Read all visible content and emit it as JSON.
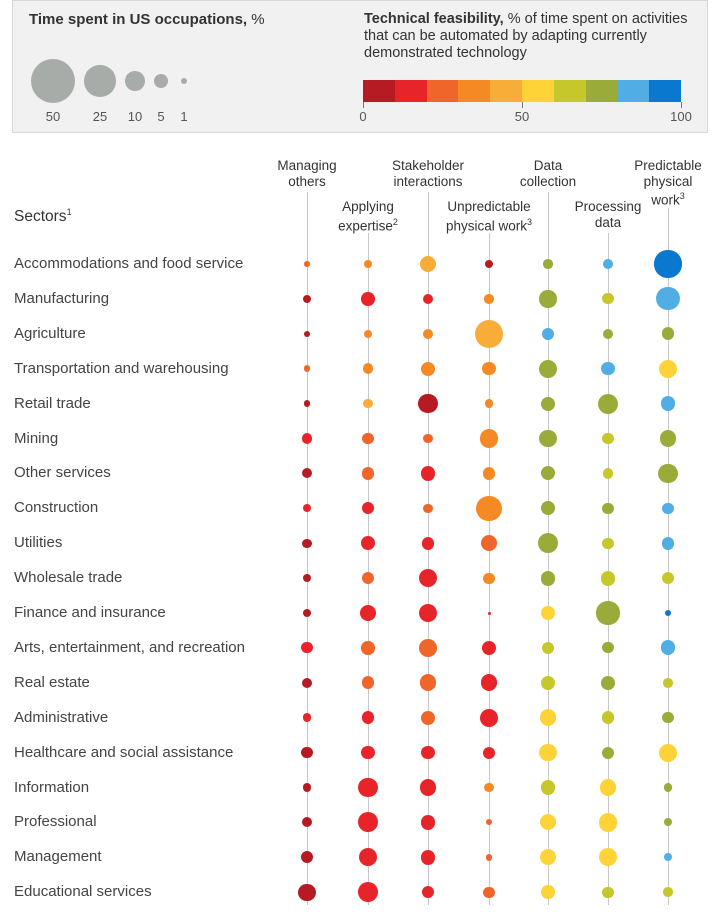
{
  "legend": {
    "size_title_bold": "Time spent in US occupations,",
    "size_title_unit": "%",
    "size_items": [
      {
        "label": "50",
        "value": 50
      },
      {
        "label": "25",
        "value": 25
      },
      {
        "label": "10",
        "value": 10
      },
      {
        "label": "5",
        "value": 5
      },
      {
        "label": "1",
        "value": 1
      }
    ],
    "feasibility_title_bold": "Technical feasibility,",
    "feasibility_title_rest": "% of time spent on activities that can be automated by adapting currently demonstrated technology",
    "color_scale": [
      "#b61b23",
      "#e8242b",
      "#f06529",
      "#f58a25",
      "#f7ad38",
      "#fdd338",
      "#c6c72b",
      "#9aab3a",
      "#50aee5",
      "#0a78cf"
    ],
    "scale_ticks": [
      "0",
      "50",
      "100"
    ],
    "size_color": "#a8aca9"
  },
  "columns": [
    {
      "label": "Managing others",
      "lines": [
        "Managing",
        "others"
      ],
      "sup": ""
    },
    {
      "label": "Applying expertise",
      "lines": [
        "Applying",
        "expertise"
      ],
      "sup": "2"
    },
    {
      "label": "Stakeholder interactions",
      "lines": [
        "Stakeholder",
        "interactions"
      ],
      "sup": ""
    },
    {
      "label": "Unpredictable physical work",
      "lines": [
        "Unpredictable",
        "physical work"
      ],
      "sup": "3"
    },
    {
      "label": "Data collection",
      "lines": [
        "Data",
        "collection"
      ],
      "sup": ""
    },
    {
      "label": "Processing data",
      "lines": [
        "Processing",
        "data"
      ],
      "sup": ""
    },
    {
      "label": "Predictable physical work",
      "lines": [
        "Predictable",
        "physical",
        "work"
      ],
      "sup": "3"
    }
  ],
  "sectors_title": "Sectors",
  "sectors_title_sup": "1",
  "chart_data": {
    "type": "bubble-matrix",
    "size_encoding": "Time spent in US occupations, %",
    "color_encoding": "Technical feasibility, % (color bin index 0-9; 0 = 0-10%, 9 = 90-100%)",
    "columns": [
      "Managing others",
      "Applying expertise",
      "Stakeholder interactions",
      "Unpredictable physical work",
      "Data collection",
      "Processing data",
      "Predictable physical work"
    ],
    "rows": [
      {
        "sector": "Accommodations and food service",
        "cells": [
          {
            "size": 0.8,
            "color": 2
          },
          {
            "size": 1.7,
            "color": 3
          },
          {
            "size": 7,
            "color": 4
          },
          {
            "size": 1.7,
            "color": 0
          },
          {
            "size": 2.3,
            "color": 7
          },
          {
            "size": 2.8,
            "color": 8
          },
          {
            "size": 18.5,
            "color": 9
          }
        ]
      },
      {
        "sector": "Manufacturing",
        "cells": [
          {
            "size": 1.7,
            "color": 0
          },
          {
            "size": 4.6,
            "color": 1
          },
          {
            "size": 2.8,
            "color": 1
          },
          {
            "size": 2.3,
            "color": 3
          },
          {
            "size": 7.5,
            "color": 7
          },
          {
            "size": 3.1,
            "color": 6
          },
          {
            "size": 13.5,
            "color": 8
          }
        ]
      },
      {
        "sector": "Agriculture",
        "cells": [
          {
            "size": 1,
            "color": 0
          },
          {
            "size": 1.7,
            "color": 3
          },
          {
            "size": 2.5,
            "color": 3
          },
          {
            "size": 20,
            "color": 4
          },
          {
            "size": 3.6,
            "color": 8
          },
          {
            "size": 2.8,
            "color": 7
          },
          {
            "size": 4.1,
            "color": 7
          }
        ]
      },
      {
        "sector": "Transportation and warehousing",
        "cells": [
          {
            "size": 1.1,
            "color": 2
          },
          {
            "size": 2.8,
            "color": 3
          },
          {
            "size": 5,
            "color": 3
          },
          {
            "size": 4.6,
            "color": 3
          },
          {
            "size": 8,
            "color": 7
          },
          {
            "size": 4.6,
            "color": 8
          },
          {
            "size": 8,
            "color": 5
          }
        ]
      },
      {
        "sector": "Retail trade",
        "cells": [
          {
            "size": 1,
            "color": 0
          },
          {
            "size": 2.2,
            "color": 4
          },
          {
            "size": 9.3,
            "color": 0
          },
          {
            "size": 1.7,
            "color": 3
          },
          {
            "size": 5,
            "color": 7
          },
          {
            "size": 10,
            "color": 7
          },
          {
            "size": 5.6,
            "color": 8
          }
        ]
      },
      {
        "sector": "Mining",
        "cells": [
          {
            "size": 2.8,
            "color": 1
          },
          {
            "size": 3.6,
            "color": 2
          },
          {
            "size": 2.5,
            "color": 2
          },
          {
            "size": 8.5,
            "color": 3
          },
          {
            "size": 7.5,
            "color": 7
          },
          {
            "size": 3.1,
            "color": 6
          },
          {
            "size": 6.5,
            "color": 7
          }
        ]
      },
      {
        "sector": "Other services",
        "cells": [
          {
            "size": 2.6,
            "color": 0
          },
          {
            "size": 4.1,
            "color": 2
          },
          {
            "size": 5.6,
            "color": 1
          },
          {
            "size": 4.1,
            "color": 3
          },
          {
            "size": 5,
            "color": 7
          },
          {
            "size": 2.8,
            "color": 6
          },
          {
            "size": 9.3,
            "color": 7
          }
        ]
      },
      {
        "sector": "Construction",
        "cells": [
          {
            "size": 1.7,
            "color": 1
          },
          {
            "size": 3.6,
            "color": 1
          },
          {
            "size": 2.3,
            "color": 2
          },
          {
            "size": 16.5,
            "color": 3
          },
          {
            "size": 5,
            "color": 7
          },
          {
            "size": 3.1,
            "color": 7
          },
          {
            "size": 3.1,
            "color": 8
          }
        ]
      },
      {
        "sector": "Utilities",
        "cells": [
          {
            "size": 2.2,
            "color": 0
          },
          {
            "size": 5,
            "color": 1
          },
          {
            "size": 4.1,
            "color": 1
          },
          {
            "size": 6.5,
            "color": 2
          },
          {
            "size": 10,
            "color": 7
          },
          {
            "size": 3.1,
            "color": 6
          },
          {
            "size": 4.1,
            "color": 8
          }
        ]
      },
      {
        "sector": "Wholesale trade",
        "cells": [
          {
            "size": 1.7,
            "color": 0
          },
          {
            "size": 4.1,
            "color": 2
          },
          {
            "size": 8.5,
            "color": 1
          },
          {
            "size": 3.1,
            "color": 3
          },
          {
            "size": 5.6,
            "color": 7
          },
          {
            "size": 5.6,
            "color": 6
          },
          {
            "size": 4.1,
            "color": 6
          }
        ]
      },
      {
        "sector": "Finance and insurance",
        "cells": [
          {
            "size": 1.7,
            "color": 0
          },
          {
            "size": 7,
            "color": 1
          },
          {
            "size": 8.5,
            "color": 1
          },
          {
            "size": 0.1,
            "color": 1
          },
          {
            "size": 5,
            "color": 5
          },
          {
            "size": 13.5,
            "color": 7
          },
          {
            "size": 0.9,
            "color": 9
          }
        ]
      },
      {
        "sector": "Arts, entertainment, and recreation",
        "cells": [
          {
            "size": 3.1,
            "color": 1
          },
          {
            "size": 4.6,
            "color": 2
          },
          {
            "size": 8,
            "color": 2
          },
          {
            "size": 5,
            "color": 1
          },
          {
            "size": 4.1,
            "color": 6
          },
          {
            "size": 3.1,
            "color": 7
          },
          {
            "size": 5.6,
            "color": 8
          }
        ]
      },
      {
        "sector": "Real estate",
        "cells": [
          {
            "size": 2.6,
            "color": 0
          },
          {
            "size": 4.1,
            "color": 2
          },
          {
            "size": 7,
            "color": 2
          },
          {
            "size": 7,
            "color": 1
          },
          {
            "size": 5,
            "color": 6
          },
          {
            "size": 5,
            "color": 7
          },
          {
            "size": 2.3,
            "color": 6
          }
        ]
      },
      {
        "sector": "Administrative",
        "cells": [
          {
            "size": 2,
            "color": 1
          },
          {
            "size": 4.1,
            "color": 1
          },
          {
            "size": 5,
            "color": 2
          },
          {
            "size": 8.5,
            "color": 1
          },
          {
            "size": 7,
            "color": 5
          },
          {
            "size": 4.1,
            "color": 6
          },
          {
            "size": 3.1,
            "color": 7
          }
        ]
      },
      {
        "sector": "Healthcare and social assistance",
        "cells": [
          {
            "size": 3.1,
            "color": 0
          },
          {
            "size": 4.6,
            "color": 1
          },
          {
            "size": 4.6,
            "color": 1
          },
          {
            "size": 3.6,
            "color": 1
          },
          {
            "size": 7.5,
            "color": 5
          },
          {
            "size": 3.6,
            "color": 7
          },
          {
            "size": 8,
            "color": 5
          }
        ]
      },
      {
        "sector": "Information",
        "cells": [
          {
            "size": 1.9,
            "color": 0
          },
          {
            "size": 9.3,
            "color": 1
          },
          {
            "size": 7,
            "color": 1
          },
          {
            "size": 2.5,
            "color": 3
          },
          {
            "size": 5,
            "color": 6
          },
          {
            "size": 7,
            "color": 5
          },
          {
            "size": 2,
            "color": 7
          }
        ]
      },
      {
        "sector": "Professional",
        "cells": [
          {
            "size": 2.6,
            "color": 0
          },
          {
            "size": 10,
            "color": 1
          },
          {
            "size": 5.6,
            "color": 1
          },
          {
            "size": 0.9,
            "color": 2
          },
          {
            "size": 6.5,
            "color": 5
          },
          {
            "size": 8.5,
            "color": 5
          },
          {
            "size": 1.7,
            "color": 7
          }
        ]
      },
      {
        "sector": "Management",
        "cells": [
          {
            "size": 3.6,
            "color": 0
          },
          {
            "size": 8.5,
            "color": 1
          },
          {
            "size": 5.6,
            "color": 1
          },
          {
            "size": 1.1,
            "color": 2
          },
          {
            "size": 6.5,
            "color": 5
          },
          {
            "size": 8.5,
            "color": 5
          },
          {
            "size": 1.7,
            "color": 8
          }
        ]
      },
      {
        "sector": "Educational services",
        "cells": [
          {
            "size": 7.5,
            "color": 0
          },
          {
            "size": 10,
            "color": 1
          },
          {
            "size": 3.6,
            "color": 1
          },
          {
            "size": 3.1,
            "color": 2
          },
          {
            "size": 4.6,
            "color": 5
          },
          {
            "size": 3.1,
            "color": 6
          },
          {
            "size": 2.3,
            "color": 6
          }
        ]
      }
    ]
  }
}
